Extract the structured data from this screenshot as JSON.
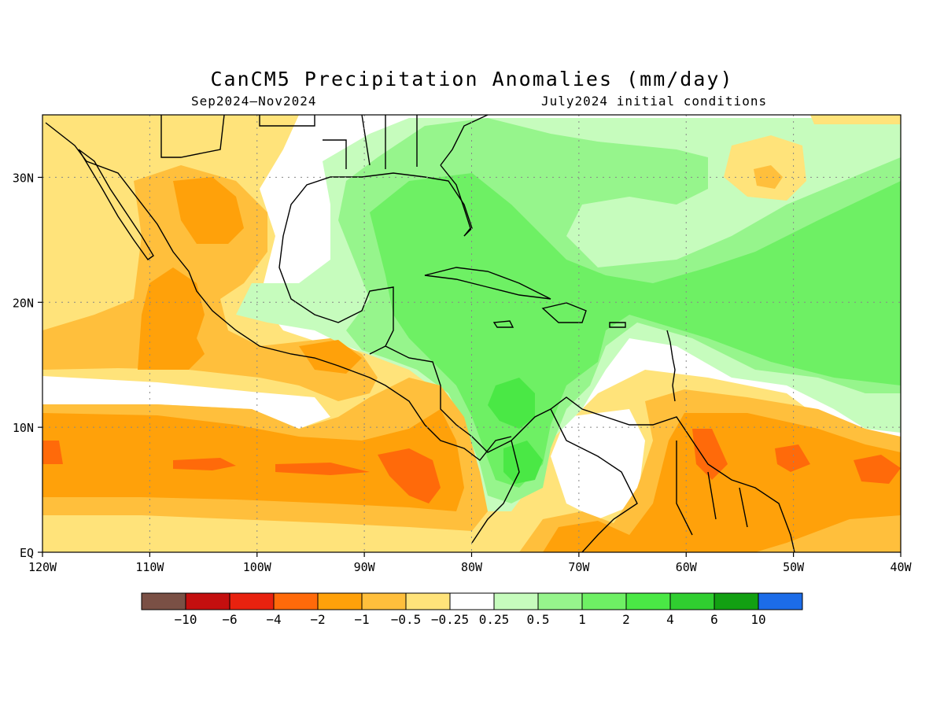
{
  "title": "CanCM5 Precipitation Anomalies (mm/day)",
  "subtitle_left": "Sep2024–Nov2024",
  "subtitle_right": "July2024 initial conditions",
  "map": {
    "lon_range": [
      -120,
      -40
    ],
    "lat_range": [
      0,
      35
    ],
    "x_ticks": [
      {
        "lon": -120,
        "label": "120W"
      },
      {
        "lon": -110,
        "label": "110W"
      },
      {
        "lon": -100,
        "label": "100W"
      },
      {
        "lon": -90,
        "label": "90W"
      },
      {
        "lon": -80,
        "label": "80W"
      },
      {
        "lon": -70,
        "label": "70W"
      },
      {
        "lon": -60,
        "label": "60W"
      },
      {
        "lon": -50,
        "label": "50W"
      },
      {
        "lon": -40,
        "label": "40W"
      }
    ],
    "y_ticks": [
      {
        "lat": 0,
        "label": "EQ"
      },
      {
        "lat": 10,
        "label": "10N"
      },
      {
        "lat": 20,
        "label": "20N"
      },
      {
        "lat": 30,
        "label": "30N"
      }
    ],
    "grid": true
  },
  "colorbar": {
    "colors": [
      "#7a5045",
      "#c40f0f",
      "#e8220f",
      "#ff6a0a",
      "#ffa10a",
      "#ffbf3c",
      "#ffe37a",
      "#ffffff",
      "#c6fcbd",
      "#96f58c",
      "#6ef064",
      "#4ae845",
      "#30ce30",
      "#12a012",
      "#1c6ce8"
    ],
    "labels": [
      "−10",
      "−6",
      "−4",
      "−2",
      "−1",
      "−0.5",
      "−0.25",
      "0.25",
      "0.5",
      "1",
      "2",
      "4",
      "6",
      "10"
    ]
  }
}
